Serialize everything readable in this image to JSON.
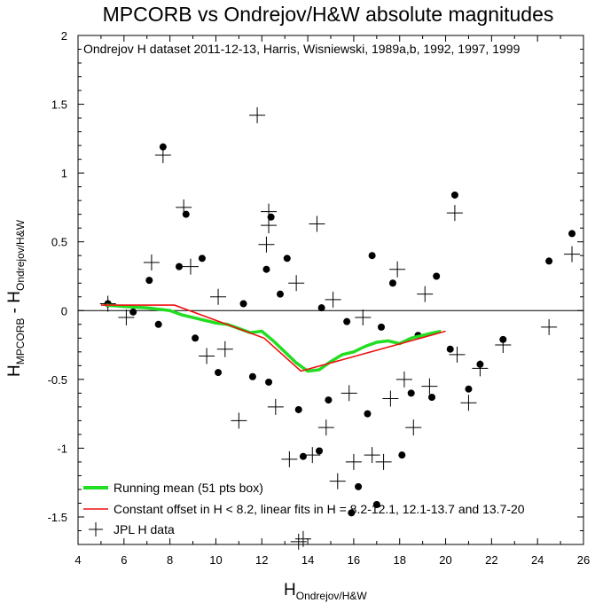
{
  "chart_data": {
    "type": "scatter",
    "title": "MPCORB vs Ondrejov/H&W absolute magnitudes",
    "subtitle": "Ondrejov H dataset 2011-12-13, Harris, Wisniewski, 1989a,b, 1992, 1997, 1999",
    "xlabel": {
      "main": "H",
      "sub": "Ondrejov/H&W"
    },
    "ylabel": {
      "prefix": "H",
      "sub1": "MPCORB",
      "mid": " - H",
      "sub2": "Ondrejov/H&W"
    },
    "xlim": [
      4,
      26
    ],
    "ylim": [
      -1.7,
      2
    ],
    "x_ticks": [
      "4",
      "6",
      "8",
      "10",
      "12",
      "14",
      "16",
      "18",
      "20",
      "22",
      "24",
      "26"
    ],
    "y_ticks": [
      "2",
      "1.5",
      "1",
      "0.5",
      "0",
      "-0.5",
      "-1",
      "-1.5"
    ],
    "zero_line": 0,
    "legend_position": "bottom-left",
    "legend": [
      {
        "label": "Running mean (51 pts box)",
        "color": "#22dd22",
        "style": "thick-line"
      },
      {
        "label": "Constant offset in H < 8.2, linear fits in H = 8.2-12.1, 12.1-13.7 and 13.7-20",
        "color": "#ee1111",
        "style": "line"
      },
      {
        "label": "JPL H data",
        "color": "#000000",
        "style": "plus"
      }
    ],
    "series": [
      {
        "name": "Running mean (51 pts box)",
        "color": "#22dd22",
        "x": [
          5.2,
          6,
          7,
          8,
          8.5,
          9,
          9.5,
          10,
          10.5,
          11,
          11.5,
          12,
          12.5,
          13,
          13.5,
          14,
          14.5,
          15,
          15.5,
          16,
          16.5,
          17,
          17.5,
          18,
          18.5,
          19,
          19.5,
          19.8
        ],
        "y": [
          0.04,
          0.03,
          0.02,
          0.0,
          -0.03,
          -0.05,
          -0.07,
          -0.09,
          -0.1,
          -0.13,
          -0.16,
          -0.15,
          -0.22,
          -0.3,
          -0.38,
          -0.44,
          -0.43,
          -0.37,
          -0.32,
          -0.3,
          -0.26,
          -0.23,
          -0.22,
          -0.24,
          -0.2,
          -0.18,
          -0.16,
          -0.15
        ]
      },
      {
        "name": "Constant offset in H < 8.2, linear fits in H = 8.2-12.1, 12.1-13.7 and 13.7-20",
        "color": "#ee1111",
        "x": [
          5,
          8.2,
          12.1,
          13.7,
          20
        ],
        "y": [
          0.04,
          0.04,
          -0.2,
          -0.44,
          -0.15
        ]
      },
      {
        "name": "JPL H data",
        "marker": "plus",
        "points": [
          [
            5.3,
            0.05
          ],
          [
            7.7,
            1.13
          ],
          [
            8.6,
            0.75
          ],
          [
            11.8,
            1.42
          ],
          [
            12.3,
            0.72
          ],
          [
            12.3,
            0.62
          ],
          [
            12.2,
            0.48
          ],
          [
            14.4,
            0.63
          ],
          [
            20.4,
            0.71
          ],
          [
            24.5,
            -0.12
          ],
          [
            25.5,
            0.41
          ],
          [
            22.5,
            -0.25
          ],
          [
            21.5,
            -0.42
          ],
          [
            21.0,
            -0.67
          ],
          [
            17.3,
            -1.1
          ],
          [
            15.3,
            -1.24
          ],
          [
            13.8,
            -1.66
          ],
          [
            13.6,
            -1.68
          ],
          [
            11,
            -0.8
          ],
          [
            13.2,
            -1.08
          ],
          [
            14.2,
            -1.05
          ],
          [
            16,
            -1.1
          ],
          [
            16.8,
            -1.05
          ],
          [
            18.6,
            -0.85
          ],
          [
            19.3,
            -0.55
          ],
          [
            20.5,
            -0.32
          ],
          [
            9.6,
            -0.33
          ],
          [
            10.4,
            -0.28
          ],
          [
            12.6,
            -0.7
          ],
          [
            14.8,
            -0.85
          ],
          [
            15.8,
            -0.6
          ],
          [
            17.6,
            -0.64
          ],
          [
            18.2,
            -0.5
          ],
          [
            8.9,
            0.32
          ],
          [
            7.2,
            0.35
          ],
          [
            10.1,
            0.1
          ],
          [
            13.5,
            0.2
          ],
          [
            15.1,
            0.08
          ],
          [
            16.4,
            -0.05
          ],
          [
            19.1,
            0.12
          ],
          [
            17.9,
            0.3
          ],
          [
            6.1,
            -0.05
          ]
        ]
      },
      {
        "name": "points",
        "marker": "dot",
        "points": [
          [
            5.3,
            0.05
          ],
          [
            7.7,
            1.19
          ],
          [
            8.7,
            0.7
          ],
          [
            12.4,
            0.68
          ],
          [
            20.4,
            0.84
          ],
          [
            24.5,
            0.36
          ],
          [
            25.5,
            0.56
          ],
          [
            22.5,
            -0.21
          ],
          [
            21.5,
            -0.39
          ],
          [
            21.0,
            -0.57
          ],
          [
            17,
            -1.41
          ],
          [
            16.2,
            -1.28
          ],
          [
            15.9,
            -1.47
          ],
          [
            18.1,
            -1.05
          ],
          [
            13.8,
            -1.06
          ],
          [
            14.5,
            -1.02
          ],
          [
            12.3,
            -0.52
          ],
          [
            13.6,
            -0.72
          ],
          [
            14.9,
            -0.65
          ],
          [
            16.6,
            -0.75
          ],
          [
            18.5,
            -0.6
          ],
          [
            19.4,
            -0.63
          ],
          [
            11.6,
            -0.48
          ],
          [
            10.1,
            -0.45
          ],
          [
            9.4,
            0.38
          ],
          [
            8.4,
            0.32
          ],
          [
            7.1,
            0.22
          ],
          [
            6.4,
            -0.01
          ],
          [
            7.5,
            -0.1
          ],
          [
            9.1,
            -0.2
          ],
          [
            11.2,
            0.05
          ],
          [
            12.8,
            0.12
          ],
          [
            14.6,
            0.02
          ],
          [
            15.7,
            -0.08
          ],
          [
            17.2,
            -0.12
          ],
          [
            18.8,
            -0.18
          ],
          [
            19.6,
            0.25
          ],
          [
            20.2,
            -0.28
          ],
          [
            16.8,
            0.4
          ],
          [
            17.7,
            0.2
          ],
          [
            13.1,
            0.38
          ],
          [
            12.2,
            0.3
          ]
        ]
      }
    ]
  }
}
